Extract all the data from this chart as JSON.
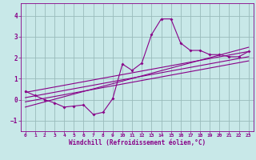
{
  "x_data": [
    0,
    1,
    2,
    3,
    4,
    5,
    6,
    7,
    8,
    9,
    10,
    11,
    12,
    13,
    14,
    15,
    16,
    17,
    18,
    19,
    20,
    21,
    22,
    23
  ],
  "scatter_y": [
    0.4,
    0.2,
    0.0,
    -0.15,
    -0.35,
    -0.3,
    -0.25,
    -0.7,
    -0.6,
    0.05,
    1.7,
    1.4,
    1.75,
    3.1,
    3.85,
    3.85,
    2.7,
    2.35,
    2.35,
    2.15,
    2.15,
    2.05,
    2.05,
    2.3
  ],
  "line1_x": [
    0,
    23
  ],
  "line1_y": [
    0.35,
    2.3
  ],
  "line2_x": [
    0,
    23
  ],
  "line2_y": [
    0.1,
    2.05
  ],
  "line3_x": [
    0,
    23
  ],
  "line3_y": [
    -0.1,
    1.85
  ],
  "line4_x": [
    0,
    23
  ],
  "line4_y": [
    -0.35,
    2.5
  ],
  "color": "#880088",
  "bg_color": "#c8e8e8",
  "grid_color": "#99bbbb",
  "xlabel": "Windchill (Refroidissement éolien,°C)",
  "ylim": [
    -1.5,
    4.6
  ],
  "xlim": [
    -0.5,
    23.5
  ],
  "yticks": [
    -1,
    0,
    1,
    2,
    3,
    4
  ],
  "xticks": [
    0,
    1,
    2,
    3,
    4,
    5,
    6,
    7,
    8,
    9,
    10,
    11,
    12,
    13,
    14,
    15,
    16,
    17,
    18,
    19,
    20,
    21,
    22,
    23
  ]
}
